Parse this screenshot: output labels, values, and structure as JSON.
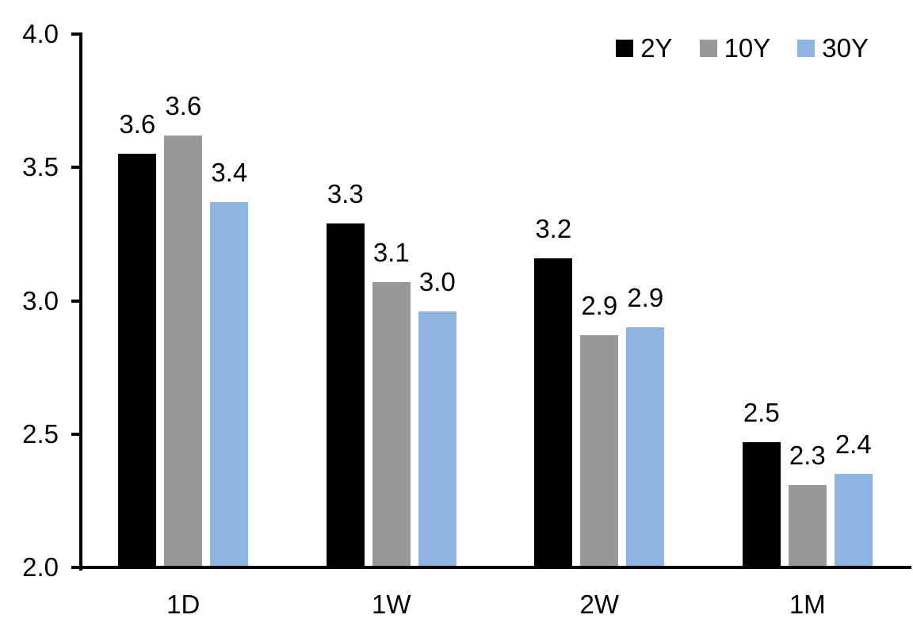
{
  "chart_data": {
    "type": "bar",
    "title": "",
    "categories": [
      "1D",
      "1W",
      "2W",
      "1M"
    ],
    "series": [
      {
        "name": "2Y",
        "color": "#000000",
        "values": [
          3.55,
          3.29,
          3.16,
          2.47
        ],
        "labels": [
          "3.6",
          "3.3",
          "3.2",
          "2.5"
        ]
      },
      {
        "name": "10Y",
        "color": "#989898",
        "values": [
          3.62,
          3.07,
          2.87,
          2.31
        ],
        "labels": [
          "3.6",
          "3.1",
          "2.9",
          "2.3"
        ]
      },
      {
        "name": "30Y",
        "color": "#8DB4E2",
        "values": [
          3.37,
          2.96,
          2.9,
          2.35
        ],
        "labels": [
          "3.4",
          "3.0",
          "2.9",
          "2.4"
        ]
      }
    ],
    "ylim": [
      2.0,
      4.0
    ],
    "yticks": [
      {
        "value": 4.0,
        "label": "4.0"
      },
      {
        "value": 3.5,
        "label": "3.5"
      },
      {
        "value": 3.0,
        "label": "3.0"
      },
      {
        "value": 2.5,
        "label": "2.5"
      },
      {
        "value": 2.0,
        "label": "2.0"
      }
    ],
    "legend": {
      "position": "top-right",
      "entries": [
        "2Y",
        "10Y",
        "30Y"
      ]
    },
    "grid": false,
    "axis_color": "#000000",
    "text_color": "#000000",
    "background": "#FFFFFF"
  }
}
